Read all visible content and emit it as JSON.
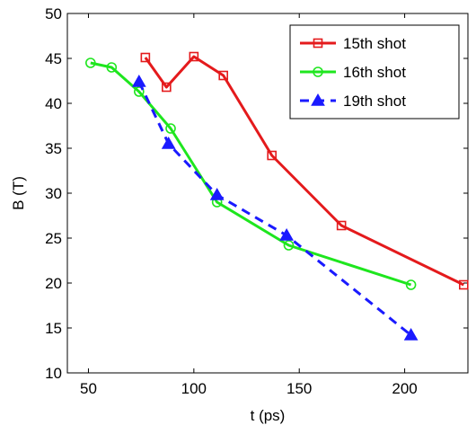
{
  "chart_data": {
    "type": "line",
    "title": "",
    "xlabel": "t (ps)",
    "ylabel": "B (T)",
    "xlim": [
      40,
      230
    ],
    "ylim": [
      10,
      50
    ],
    "xticks": [
      50,
      100,
      150,
      200
    ],
    "yticks": [
      10,
      15,
      20,
      25,
      30,
      35,
      40,
      45,
      50
    ],
    "grid": false,
    "legend_position": "top-right",
    "series": [
      {
        "name": "15th shot",
        "color": "#e41a1c",
        "line_style": "solid",
        "marker": "square",
        "x": [
          77,
          87,
          100,
          114,
          137,
          170,
          228
        ],
        "y": [
          45.1,
          41.8,
          45.2,
          43.1,
          34.2,
          26.4,
          19.8
        ]
      },
      {
        "name": "16th shot",
        "color": "#1ee61e",
        "line_style": "solid",
        "marker": "circle",
        "x": [
          51,
          61,
          74,
          89,
          111,
          145,
          203
        ],
        "y": [
          44.5,
          44.0,
          41.3,
          37.2,
          29.0,
          24.2,
          19.8
        ]
      },
      {
        "name": "19th shot",
        "color": "#1a1aff",
        "line_style": "dashed",
        "marker": "triangle",
        "x": [
          74,
          88,
          111,
          144,
          203
        ],
        "y": [
          42.4,
          35.5,
          29.8,
          25.3,
          14.2
        ]
      }
    ]
  }
}
